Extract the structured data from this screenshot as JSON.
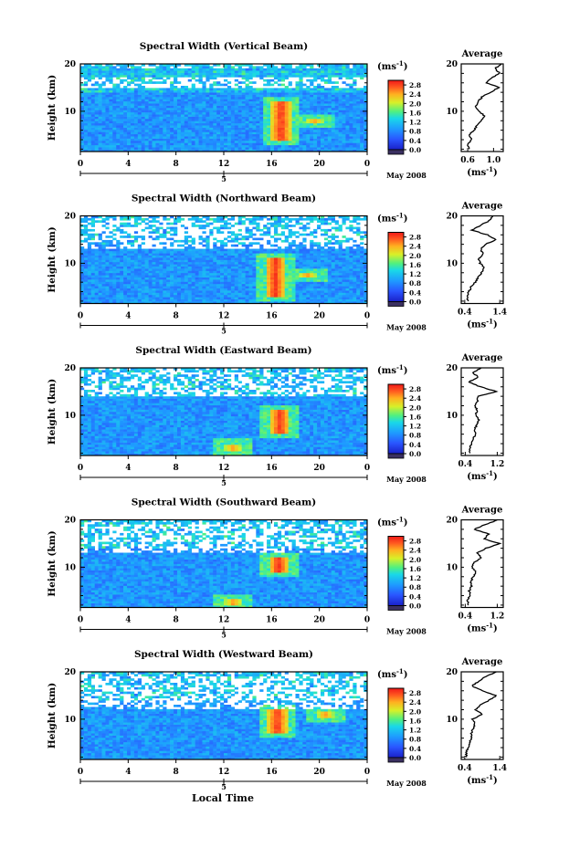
{
  "figure": {
    "xlabel": "Local Time",
    "colorbar_unit": "(ms",
    "colorbar_unit_exp": "-1",
    "colorbar_ticks": [
      "2.8",
      "2.4",
      "2.0",
      "1.6",
      "1.2",
      "0.8",
      "0.4",
      "0.0"
    ],
    "date_label": "May 2008",
    "day_label": "5",
    "avg_title": "Average",
    "avg_xunit": "(ms",
    "avg_xunit_exp": "-1",
    "ylabel": "Height (km)"
  },
  "chart_data": [
    {
      "type": "heatmap",
      "title": "Spectral Width (Vertical Beam)",
      "xlabel": "Local Time",
      "ylabel": "Height (km)",
      "x_ticks": [
        "0",
        "4",
        "8",
        "12",
        "16",
        "20",
        "0"
      ],
      "xlim": [
        0,
        24
      ],
      "y_ticks": [
        "10",
        "20"
      ],
      "ylim": [
        1.5,
        20
      ],
      "colorbar": {
        "label": "(ms-1)",
        "min": 0.0,
        "max": 3.0,
        "ticks": [
          0.0,
          0.4,
          0.8,
          1.2,
          1.6,
          2.0,
          2.4,
          2.8
        ]
      },
      "hotspots": [
        {
          "time": 16.8,
          "height_range": [
            4,
            12
          ],
          "value": 2.8
        },
        {
          "time": 19.6,
          "height_range": [
            7.5,
            8.5
          ],
          "value": 2.4
        }
      ],
      "gap_band_km": [
        15,
        17
      ],
      "average_profile": {
        "title": "Average",
        "xlabel": "(ms-1)",
        "x_ticks": [
          "0.6",
          "1.0"
        ],
        "xlim": [
          0.5,
          1.15
        ],
        "y_ticks": [
          "10",
          "20"
        ],
        "ylim": [
          1.5,
          20
        ],
        "profile": [
          [
            0.62,
            2
          ],
          [
            0.6,
            3
          ],
          [
            0.66,
            4
          ],
          [
            0.62,
            5
          ],
          [
            0.7,
            6
          ],
          [
            0.74,
            7
          ],
          [
            0.8,
            8
          ],
          [
            0.86,
            9
          ],
          [
            0.78,
            10
          ],
          [
            0.72,
            11
          ],
          [
            0.76,
            12
          ],
          [
            0.82,
            13
          ],
          [
            0.95,
            14
          ],
          [
            1.08,
            15
          ],
          [
            0.9,
            16
          ],
          [
            0.96,
            17
          ],
          [
            1.1,
            18
          ],
          [
            1.02,
            19
          ],
          [
            1.12,
            20
          ]
        ]
      }
    },
    {
      "type": "heatmap",
      "title": "Spectral Width (Northward Beam)",
      "xlabel": "Local Time",
      "ylabel": "Height (km)",
      "x_ticks": [
        "0",
        "4",
        "8",
        "12",
        "16",
        "20",
        "0"
      ],
      "xlim": [
        0,
        24
      ],
      "y_ticks": [
        "10",
        "20"
      ],
      "ylim": [
        1.5,
        20
      ],
      "colorbar": {
        "label": "(ms-1)",
        "min": 0.0,
        "max": 3.0,
        "ticks": [
          0.0,
          0.4,
          0.8,
          1.2,
          1.6,
          2.0,
          2.4,
          2.8
        ]
      },
      "hotspots": [
        {
          "time": 16.3,
          "height_range": [
            3,
            11
          ],
          "value": 2.8
        },
        {
          "time": 19.0,
          "height_range": [
            7,
            8
          ],
          "value": 2.4
        }
      ],
      "gap_band_km": [
        13,
        19
      ],
      "average_profile": {
        "title": "Average",
        "xlabel": "(ms-1)",
        "x_ticks": [
          "0.4",
          "1.4"
        ],
        "xlim": [
          0.3,
          1.5
        ],
        "y_ticks": [
          "10",
          "20"
        ],
        "ylim": [
          1.5,
          20
        ],
        "profile": [
          [
            0.5,
            2
          ],
          [
            0.46,
            3
          ],
          [
            0.52,
            4
          ],
          [
            0.58,
            5
          ],
          [
            0.7,
            6
          ],
          [
            0.78,
            7
          ],
          [
            0.88,
            8
          ],
          [
            0.96,
            9
          ],
          [
            0.84,
            10
          ],
          [
            0.8,
            11
          ],
          [
            0.92,
            12
          ],
          [
            0.86,
            13
          ],
          [
            0.98,
            14
          ],
          [
            1.3,
            15
          ],
          [
            1.05,
            16
          ],
          [
            0.6,
            17
          ],
          [
            0.85,
            18
          ],
          [
            1.1,
            19
          ],
          [
            1.2,
            20
          ]
        ]
      }
    },
    {
      "type": "heatmap",
      "title": "Spectral Width (Eastward Beam)",
      "xlabel": "Local Time",
      "ylabel": "Height (km)",
      "x_ticks": [
        "0",
        "4",
        "8",
        "12",
        "16",
        "20",
        "0"
      ],
      "xlim": [
        0,
        24
      ],
      "y_ticks": [
        "10",
        "20"
      ],
      "ylim": [
        1.5,
        20
      ],
      "colorbar": {
        "label": "(ms-1)",
        "min": 0.0,
        "max": 3.0,
        "ticks": [
          0.0,
          0.4,
          0.8,
          1.2,
          1.6,
          2.0,
          2.4,
          2.8
        ]
      },
      "hotspots": [
        {
          "time": 16.7,
          "height_range": [
            6,
            11
          ],
          "value": 2.8
        },
        {
          "time": 12.8,
          "height_range": [
            2.5,
            4
          ],
          "value": 2.4
        }
      ],
      "gap_band_km": [
        14,
        19
      ],
      "average_profile": {
        "title": "Average",
        "xlabel": "(ms-1)",
        "x_ticks": [
          "0.4",
          "1.2"
        ],
        "xlim": [
          0.3,
          1.35
        ],
        "y_ticks": [
          "10",
          "20"
        ],
        "ylim": [
          1.5,
          20
        ],
        "profile": [
          [
            0.52,
            2
          ],
          [
            0.5,
            3
          ],
          [
            0.56,
            4
          ],
          [
            0.6,
            5
          ],
          [
            0.66,
            6
          ],
          [
            0.62,
            7
          ],
          [
            0.7,
            8
          ],
          [
            0.74,
            9
          ],
          [
            0.66,
            10
          ],
          [
            0.7,
            11
          ],
          [
            0.64,
            12
          ],
          [
            0.72,
            13
          ],
          [
            0.7,
            14
          ],
          [
            1.18,
            15
          ],
          [
            0.78,
            16
          ],
          [
            0.48,
            17
          ],
          [
            0.72,
            18
          ],
          [
            0.6,
            19
          ],
          [
            0.8,
            20
          ]
        ]
      }
    },
    {
      "type": "heatmap",
      "title": "Spectral Width (Southward Beam)",
      "xlabel": "Local Time",
      "ylabel": "Height (km)",
      "x_ticks": [
        "0",
        "4",
        "8",
        "12",
        "16",
        "20",
        "0"
      ],
      "xlim": [
        0,
        24
      ],
      "y_ticks": [
        "10",
        "20"
      ],
      "ylim": [
        1.5,
        20
      ],
      "colorbar": {
        "label": "(ms-1)",
        "min": 0.0,
        "max": 3.0,
        "ticks": [
          0.0,
          0.4,
          0.8,
          1.2,
          1.6,
          2.0,
          2.4,
          2.8
        ]
      },
      "hotspots": [
        {
          "time": 16.6,
          "height_range": [
            9,
            12
          ],
          "value": 2.8
        },
        {
          "time": 12.8,
          "height_range": [
            2,
            3.5
          ],
          "value": 2.4
        }
      ],
      "gap_band_km": [
        13,
        19
      ],
      "average_profile": {
        "title": "Average",
        "xlabel": "(ms-1)",
        "x_ticks": [
          "0.4",
          "1.2"
        ],
        "xlim": [
          0.3,
          1.35
        ],
        "y_ticks": [
          "10",
          "20"
        ],
        "ylim": [
          1.5,
          20
        ],
        "profile": [
          [
            0.48,
            2
          ],
          [
            0.46,
            3
          ],
          [
            0.52,
            4
          ],
          [
            0.5,
            5
          ],
          [
            0.56,
            6
          ],
          [
            0.54,
            7
          ],
          [
            0.6,
            8
          ],
          [
            0.66,
            9
          ],
          [
            0.58,
            10
          ],
          [
            0.62,
            11
          ],
          [
            0.8,
            12
          ],
          [
            0.7,
            13
          ],
          [
            0.92,
            14
          ],
          [
            1.25,
            15
          ],
          [
            0.86,
            16
          ],
          [
            1.0,
            17
          ],
          [
            0.62,
            18
          ],
          [
            0.9,
            19
          ],
          [
            1.2,
            20
          ]
        ]
      }
    },
    {
      "type": "heatmap",
      "title": "Spectral Width (Westward Beam)",
      "xlabel": "Local Time",
      "ylabel": "Height (km)",
      "x_ticks": [
        "0",
        "4",
        "8",
        "12",
        "16",
        "20",
        "0"
      ],
      "xlim": [
        0,
        24
      ],
      "y_ticks": [
        "10",
        "20"
      ],
      "ylim": [
        1.5,
        20
      ],
      "colorbar": {
        "label": "(ms-1)",
        "min": 0.0,
        "max": 3.0,
        "ticks": [
          0.0,
          0.4,
          0.8,
          1.2,
          1.6,
          2.0,
          2.4,
          2.8
        ]
      },
      "hotspots": [
        {
          "time": 16.5,
          "height_range": [
            7,
            12
          ],
          "value": 2.8
        },
        {
          "time": 20.5,
          "height_range": [
            10.5,
            11.5
          ],
          "value": 2.4
        }
      ],
      "gap_band_km": [
        12,
        19
      ],
      "average_profile": {
        "title": "Average",
        "xlabel": "(ms-1)",
        "x_ticks": [
          "0.4",
          "1.4"
        ],
        "xlim": [
          0.3,
          1.5
        ],
        "y_ticks": [
          "10",
          "20"
        ],
        "ylim": [
          1.5,
          20
        ],
        "profile": [
          [
            0.46,
            2
          ],
          [
            0.44,
            3
          ],
          [
            0.5,
            4
          ],
          [
            0.54,
            5
          ],
          [
            0.6,
            6
          ],
          [
            0.58,
            7
          ],
          [
            0.64,
            8
          ],
          [
            0.7,
            9
          ],
          [
            0.62,
            10
          ],
          [
            0.9,
            11
          ],
          [
            0.7,
            12
          ],
          [
            0.86,
            13
          ],
          [
            1.1,
            14
          ],
          [
            1.3,
            15
          ],
          [
            0.9,
            16
          ],
          [
            0.6,
            17
          ],
          [
            0.8,
            18
          ],
          [
            1.0,
            19
          ],
          [
            1.3,
            20
          ]
        ]
      }
    }
  ]
}
